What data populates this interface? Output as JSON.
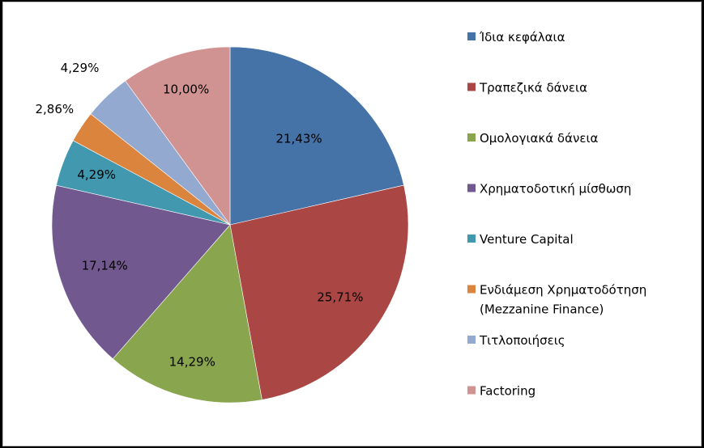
{
  "chart_data": {
    "type": "pie",
    "title": "",
    "categories": [
      "Ίδια κεφάλαια",
      "Τραπεζικά δάνεια",
      "Ομολογιακά δάνεια",
      "Χρηματοδοτική μίσθωση",
      "Venture Capital",
      "Ενδιάμεση Χρηματοδότηση (Mezzanine Finance)",
      "Τιτλοποιήσεις",
      "Factoring"
    ],
    "values": [
      21.43,
      25.71,
      14.29,
      17.14,
      4.29,
      2.86,
      4.29,
      10.0
    ],
    "data_labels": [
      "21,43%",
      "25,71%",
      "14,29%",
      "17,14%",
      "4,29%",
      "2,86%",
      "4,29%",
      "10,00%"
    ],
    "colors": [
      "#4572A7",
      "#AA4643",
      "#89A54E",
      "#71588F",
      "#4198AF",
      "#DB843D",
      "#93A9CF",
      "#D19392"
    ],
    "legend": {
      "position": "right",
      "entries": [
        [
          "Ίδια κεφάλαια"
        ],
        [
          "Τραπεζικά δάνεια"
        ],
        [
          "Ομολογιακά δάνεια"
        ],
        [
          "Χρηματοδοτική μίσθωση"
        ],
        [
          "Venture Capital"
        ],
        [
          "Ενδιάμεση Χρηματοδότηση",
          "(Mezzanine Finance)"
        ],
        [
          "Τιτλοποιήσεις"
        ],
        [
          "Factoring"
        ]
      ]
    }
  }
}
